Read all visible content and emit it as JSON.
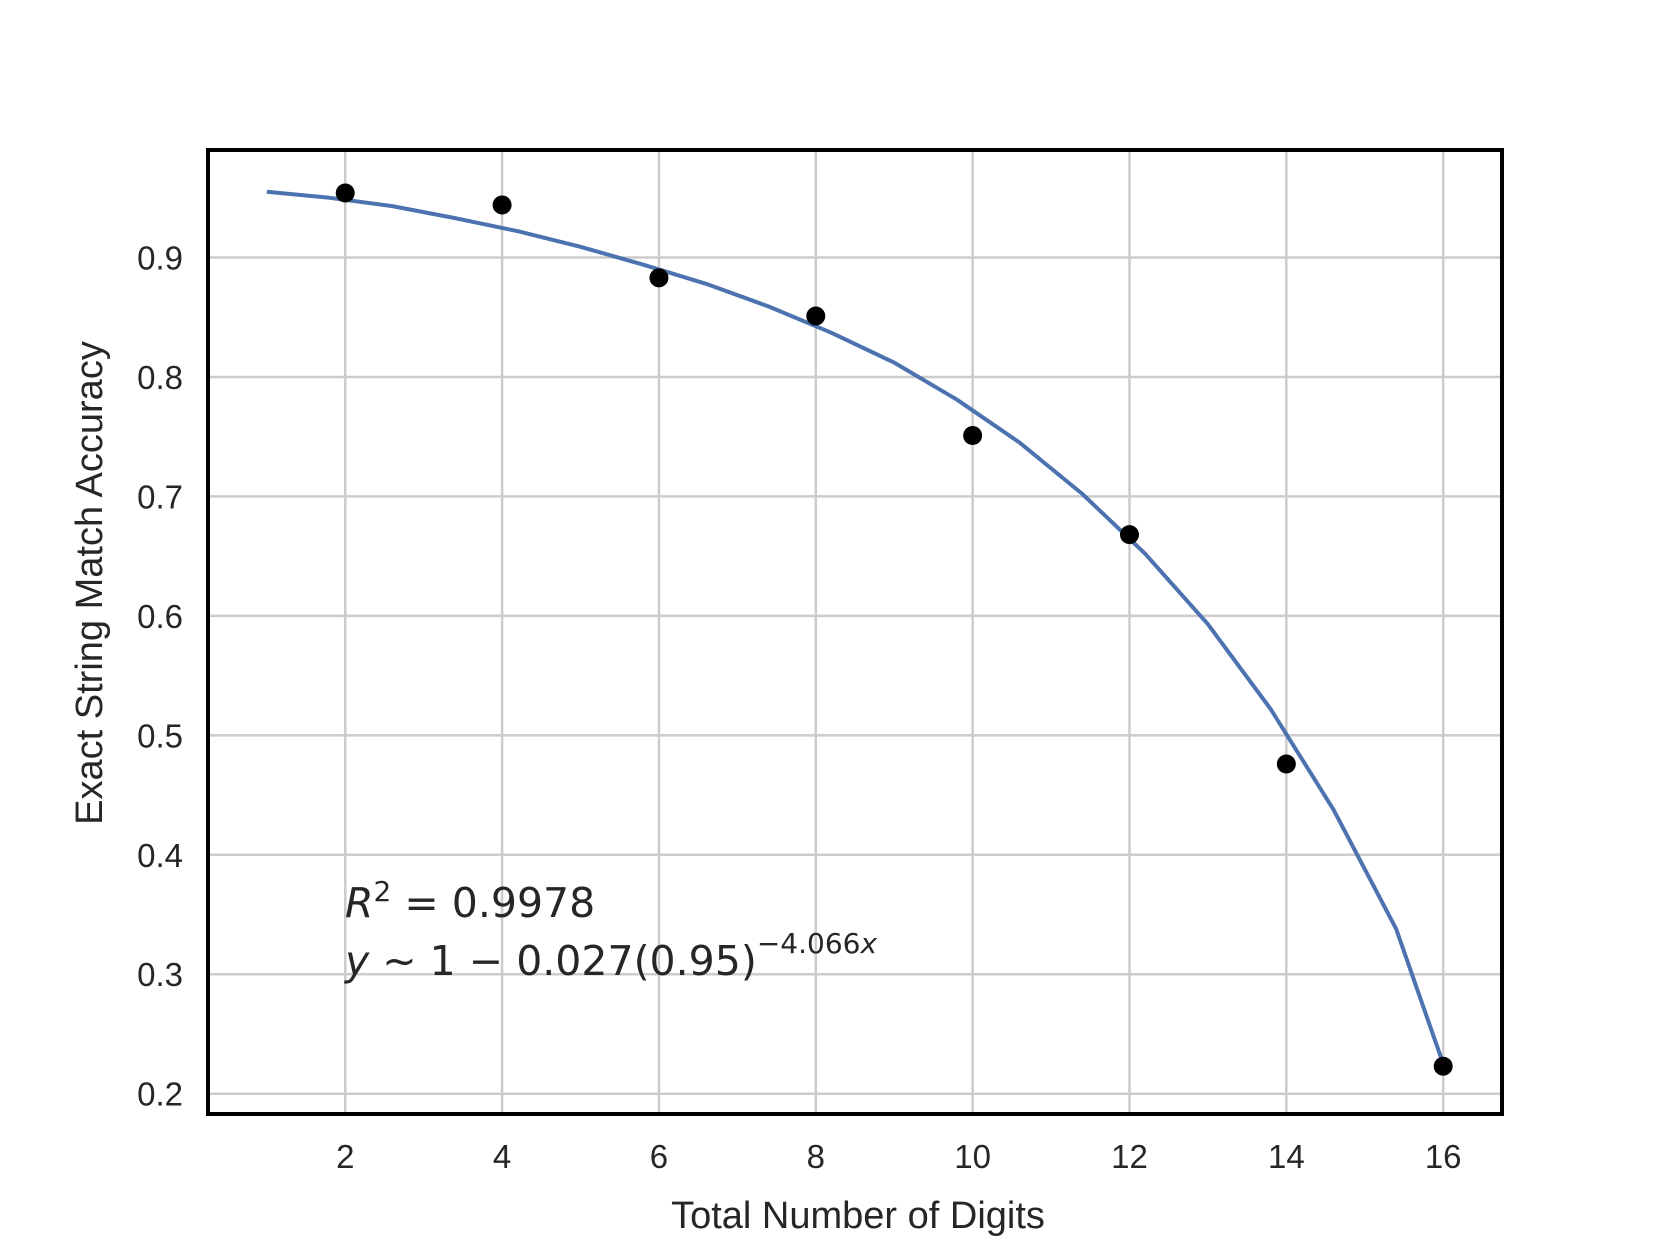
{
  "chart_data": {
    "type": "scatter",
    "title": "",
    "xlabel": "Total Number of Digits",
    "ylabel": "Exact String Match Accuracy",
    "xlim": [
      0.25,
      16.75
    ],
    "ylim": [
      0.183,
      0.99
    ],
    "grid": true,
    "x_ticks": [
      2,
      4,
      6,
      8,
      10,
      12,
      14,
      16
    ],
    "x_tick_labels": [
      "2",
      "4",
      "6",
      "8",
      "10",
      "12",
      "14",
      "16"
    ],
    "y_ticks": [
      0.2,
      0.3,
      0.4,
      0.5,
      0.6,
      0.7,
      0.8,
      0.9
    ],
    "y_tick_labels": [
      "0.2",
      "0.3",
      "0.4",
      "0.5",
      "0.6",
      "0.7",
      "0.8",
      "0.9"
    ],
    "points": {
      "x": [
        2,
        4,
        6,
        8,
        10,
        12,
        14,
        16
      ],
      "y": [
        0.954,
        0.944,
        0.883,
        0.851,
        0.751,
        0.668,
        0.476,
        0.223
      ]
    },
    "fit_curve": {
      "x": [
        1,
        1.8,
        2.6,
        3.4,
        4.2,
        5.0,
        5.8,
        6.6,
        7.4,
        8.2,
        9.0,
        9.8,
        10.6,
        11.4,
        12.2,
        13.0,
        13.8,
        14.6,
        15.4,
        16
      ],
      "y": [
        0.955,
        0.95,
        0.943,
        0.933,
        0.922,
        0.909,
        0.894,
        0.878,
        0.859,
        0.837,
        0.812,
        0.781,
        0.745,
        0.702,
        0.652,
        0.593,
        0.522,
        0.438,
        0.338,
        0.225
      ]
    },
    "colors": {
      "points": "#000000",
      "fit_line": "#4c72b0",
      "grid": "#cccccc",
      "frame": "#000000"
    },
    "annotation": {
      "r2_symbol": "R",
      "r2_exp": "2",
      "r2_rest": " = 0.9978",
      "eq_var": "y",
      "eq_body": " ∼ 1 − 0.027(0.95)",
      "eq_exp_num": "−4.066",
      "eq_exp_var": "x"
    }
  }
}
